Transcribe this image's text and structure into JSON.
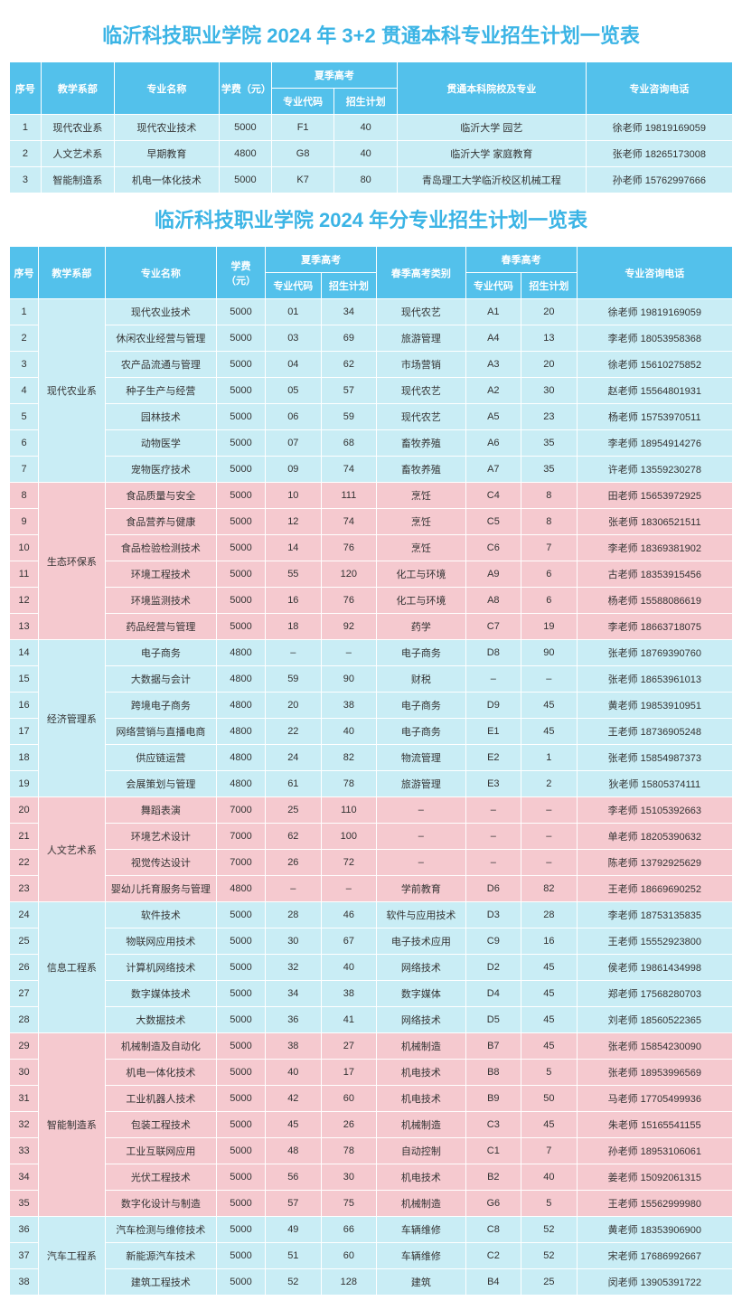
{
  "table1": {
    "title": "临沂科技职业学院 2024 年 3+2 贯通本科专业招生计划一览表",
    "headers": {
      "idx": "序号",
      "dept": "教学系部",
      "major": "专业名称",
      "fee": "学费（元）",
      "summer": "夏季高考",
      "code": "专业代码",
      "plan": "招生计划",
      "school": "贯通本科院校及专业",
      "tel": "专业咨询电话"
    },
    "rows": [
      {
        "idx": "1",
        "dept": "现代农业系",
        "major": "现代农业技术",
        "fee": "5000",
        "code": "F1",
        "plan": "40",
        "school": "临沂大学 园艺",
        "tel": "徐老师 19819169059"
      },
      {
        "idx": "2",
        "dept": "人文艺术系",
        "major": "早期教育",
        "fee": "4800",
        "code": "G8",
        "plan": "40",
        "school": "临沂大学 家庭教育",
        "tel": "张老师 18265173008"
      },
      {
        "idx": "3",
        "dept": "智能制造系",
        "major": "机电一体化技术",
        "fee": "5000",
        "code": "K7",
        "plan": "80",
        "school": "青岛理工大学临沂校区机械工程",
        "tel": "孙老师 15762997666"
      }
    ]
  },
  "table2": {
    "title": "临沂科技职业学院 2024 年分专业招生计划一览表",
    "headers": {
      "idx": "序号",
      "dept": "教学系部",
      "major": "专业名称",
      "fee": "学费（元）",
      "summer": "夏季高考",
      "code": "专业代码",
      "plan": "招生计划",
      "spring_cat": "春季高考类别",
      "spring": "春季高考",
      "tel": "专业咨询电话"
    },
    "groups": [
      {
        "dept": "现代农业系",
        "color": "blue",
        "rows": [
          {
            "idx": "1",
            "major": "现代农业技术",
            "fee": "5000",
            "scode": "01",
            "splan": "34",
            "cat": "现代农艺",
            "pcode": "A1",
            "pplan": "20",
            "tel": "徐老师 19819169059"
          },
          {
            "idx": "2",
            "major": "休闲农业经营与管理",
            "fee": "5000",
            "scode": "03",
            "splan": "69",
            "cat": "旅游管理",
            "pcode": "A4",
            "pplan": "13",
            "tel": "李老师 18053958368"
          },
          {
            "idx": "3",
            "major": "农产品流通与管理",
            "fee": "5000",
            "scode": "04",
            "splan": "62",
            "cat": "市场营销",
            "pcode": "A3",
            "pplan": "20",
            "tel": "徐老师 15610275852"
          },
          {
            "idx": "4",
            "major": "种子生产与经营",
            "fee": "5000",
            "scode": "05",
            "splan": "57",
            "cat": "现代农艺",
            "pcode": "A2",
            "pplan": "30",
            "tel": "赵老师 15564801931"
          },
          {
            "idx": "5",
            "major": "园林技术",
            "fee": "5000",
            "scode": "06",
            "splan": "59",
            "cat": "现代农艺",
            "pcode": "A5",
            "pplan": "23",
            "tel": "杨老师 15753970511"
          },
          {
            "idx": "6",
            "major": "动物医学",
            "fee": "5000",
            "scode": "07",
            "splan": "68",
            "cat": "畜牧养殖",
            "pcode": "A6",
            "pplan": "35",
            "tel": "李老师 18954914276"
          },
          {
            "idx": "7",
            "major": "宠物医疗技术",
            "fee": "5000",
            "scode": "09",
            "splan": "74",
            "cat": "畜牧养殖",
            "pcode": "A7",
            "pplan": "35",
            "tel": "许老师 13559230278"
          }
        ]
      },
      {
        "dept": "生态环保系",
        "color": "pink",
        "rows": [
          {
            "idx": "8",
            "major": "食品质量与安全",
            "fee": "5000",
            "scode": "10",
            "splan": "111",
            "cat": "烹饪",
            "pcode": "C4",
            "pplan": "8",
            "tel": "田老师 15653972925"
          },
          {
            "idx": "9",
            "major": "食品营养与健康",
            "fee": "5000",
            "scode": "12",
            "splan": "74",
            "cat": "烹饪",
            "pcode": "C5",
            "pplan": "8",
            "tel": "张老师 18306521511"
          },
          {
            "idx": "10",
            "major": "食品检验检测技术",
            "fee": "5000",
            "scode": "14",
            "splan": "76",
            "cat": "烹饪",
            "pcode": "C6",
            "pplan": "7",
            "tel": "李老师 18369381902"
          },
          {
            "idx": "11",
            "major": "环境工程技术",
            "fee": "5000",
            "scode": "55",
            "splan": "120",
            "cat": "化工与环境",
            "pcode": "A9",
            "pplan": "6",
            "tel": "古老师 18353915456"
          },
          {
            "idx": "12",
            "major": "环境监测技术",
            "fee": "5000",
            "scode": "16",
            "splan": "76",
            "cat": "化工与环境",
            "pcode": "A8",
            "pplan": "6",
            "tel": "杨老师 15588086619"
          },
          {
            "idx": "13",
            "major": "药品经营与管理",
            "fee": "5000",
            "scode": "18",
            "splan": "92",
            "cat": "药学",
            "pcode": "C7",
            "pplan": "19",
            "tel": "李老师 18663718075"
          }
        ]
      },
      {
        "dept": "经济管理系",
        "color": "blue",
        "rows": [
          {
            "idx": "14",
            "major": "电子商务",
            "fee": "4800",
            "scode": "–",
            "splan": "–",
            "cat": "电子商务",
            "pcode": "D8",
            "pplan": "90",
            "tel": "张老师 18769390760"
          },
          {
            "idx": "15",
            "major": "大数据与会计",
            "fee": "4800",
            "scode": "59",
            "splan": "90",
            "cat": "财税",
            "pcode": "–",
            "pplan": "–",
            "tel": "张老师 18653961013"
          },
          {
            "idx": "16",
            "major": "跨境电子商务",
            "fee": "4800",
            "scode": "20",
            "splan": "38",
            "cat": "电子商务",
            "pcode": "D9",
            "pplan": "45",
            "tel": "黄老师 19853910951"
          },
          {
            "idx": "17",
            "major": "网络营销与直播电商",
            "fee": "4800",
            "scode": "22",
            "splan": "40",
            "cat": "电子商务",
            "pcode": "E1",
            "pplan": "45",
            "tel": "王老师 18736905248"
          },
          {
            "idx": "18",
            "major": "供应链运营",
            "fee": "4800",
            "scode": "24",
            "splan": "82",
            "cat": "物流管理",
            "pcode": "E2",
            "pplan": "1",
            "tel": "张老师 15854987373"
          },
          {
            "idx": "19",
            "major": "会展策划与管理",
            "fee": "4800",
            "scode": "61",
            "splan": "78",
            "cat": "旅游管理",
            "pcode": "E3",
            "pplan": "2",
            "tel": "狄老师 15805374111"
          }
        ]
      },
      {
        "dept": "人文艺术系",
        "color": "pink",
        "rows": [
          {
            "idx": "20",
            "major": "舞蹈表演",
            "fee": "7000",
            "scode": "25",
            "splan": "110",
            "cat": "–",
            "pcode": "–",
            "pplan": "–",
            "tel": "李老师 15105392663"
          },
          {
            "idx": "21",
            "major": "环境艺术设计",
            "fee": "7000",
            "scode": "62",
            "splan": "100",
            "cat": "–",
            "pcode": "–",
            "pplan": "–",
            "tel": "单老师 18205390632"
          },
          {
            "idx": "22",
            "major": "视觉传达设计",
            "fee": "7000",
            "scode": "26",
            "splan": "72",
            "cat": "–",
            "pcode": "–",
            "pplan": "–",
            "tel": "陈老师 13792925629"
          },
          {
            "idx": "23",
            "major": "婴幼儿托育服务与管理",
            "fee": "4800",
            "scode": "–",
            "splan": "–",
            "cat": "学前教育",
            "pcode": "D6",
            "pplan": "82",
            "tel": "王老师 18669690252"
          }
        ]
      },
      {
        "dept": "信息工程系",
        "color": "blue",
        "rows": [
          {
            "idx": "24",
            "major": "软件技术",
            "fee": "5000",
            "scode": "28",
            "splan": "46",
            "cat": "软件与应用技术",
            "pcode": "D3",
            "pplan": "28",
            "tel": "李老师 18753135835"
          },
          {
            "idx": "25",
            "major": "物联网应用技术",
            "fee": "5000",
            "scode": "30",
            "splan": "67",
            "cat": "电子技术应用",
            "pcode": "C9",
            "pplan": "16",
            "tel": "王老师 15552923800"
          },
          {
            "idx": "26",
            "major": "计算机网络技术",
            "fee": "5000",
            "scode": "32",
            "splan": "40",
            "cat": "网络技术",
            "pcode": "D2",
            "pplan": "45",
            "tel": "侯老师 19861434998"
          },
          {
            "idx": "27",
            "major": "数字媒体技术",
            "fee": "5000",
            "scode": "34",
            "splan": "38",
            "cat": "数字媒体",
            "pcode": "D4",
            "pplan": "45",
            "tel": "郑老师 17568280703"
          },
          {
            "idx": "28",
            "major": "大数据技术",
            "fee": "5000",
            "scode": "36",
            "splan": "41",
            "cat": "网络技术",
            "pcode": "D5",
            "pplan": "45",
            "tel": "刘老师 18560522365"
          }
        ]
      },
      {
        "dept": "智能制造系",
        "color": "pink",
        "rows": [
          {
            "idx": "29",
            "major": "机械制造及自动化",
            "fee": "5000",
            "scode": "38",
            "splan": "27",
            "cat": "机械制造",
            "pcode": "B7",
            "pplan": "45",
            "tel": "张老师 15854230090"
          },
          {
            "idx": "30",
            "major": "机电一体化技术",
            "fee": "5000",
            "scode": "40",
            "splan": "17",
            "cat": "机电技术",
            "pcode": "B8",
            "pplan": "5",
            "tel": "张老师 18953996569"
          },
          {
            "idx": "31",
            "major": "工业机器人技术",
            "fee": "5000",
            "scode": "42",
            "splan": "60",
            "cat": "机电技术",
            "pcode": "B9",
            "pplan": "50",
            "tel": "马老师 17705499936"
          },
          {
            "idx": "32",
            "major": "包装工程技术",
            "fee": "5000",
            "scode": "45",
            "splan": "26",
            "cat": "机械制造",
            "pcode": "C3",
            "pplan": "45",
            "tel": "朱老师 15165541155"
          },
          {
            "idx": "33",
            "major": "工业互联网应用",
            "fee": "5000",
            "scode": "48",
            "splan": "78",
            "cat": "自动控制",
            "pcode": "C1",
            "pplan": "7",
            "tel": "孙老师 18953106061"
          },
          {
            "idx": "34",
            "major": "光伏工程技术",
            "fee": "5000",
            "scode": "56",
            "splan": "30",
            "cat": "机电技术",
            "pcode": "B2",
            "pplan": "40",
            "tel": "姜老师 15092061315"
          },
          {
            "idx": "35",
            "major": "数字化设计与制造",
            "fee": "5000",
            "scode": "57",
            "splan": "75",
            "cat": "机械制造",
            "pcode": "G6",
            "pplan": "5",
            "tel": "王老师 15562999980"
          }
        ]
      },
      {
        "dept": "汽车工程系",
        "color": "blue",
        "rows": [
          {
            "idx": "36",
            "major": "汽车检测与维修技术",
            "fee": "5000",
            "scode": "49",
            "splan": "66",
            "cat": "车辆维修",
            "pcode": "C8",
            "pplan": "52",
            "tel": "黄老师 18353906900"
          },
          {
            "idx": "37",
            "major": "新能源汽车技术",
            "fee": "5000",
            "scode": "51",
            "splan": "60",
            "cat": "车辆维修",
            "pcode": "C2",
            "pplan": "52",
            "tel": "宋老师 17686992667"
          },
          {
            "idx": "38",
            "major": "建筑工程技术",
            "fee": "5000",
            "scode": "52",
            "splan": "128",
            "cat": "建筑",
            "pcode": "B4",
            "pplan": "25",
            "tel": "闵老师 13905391722"
          }
        ]
      }
    ]
  }
}
